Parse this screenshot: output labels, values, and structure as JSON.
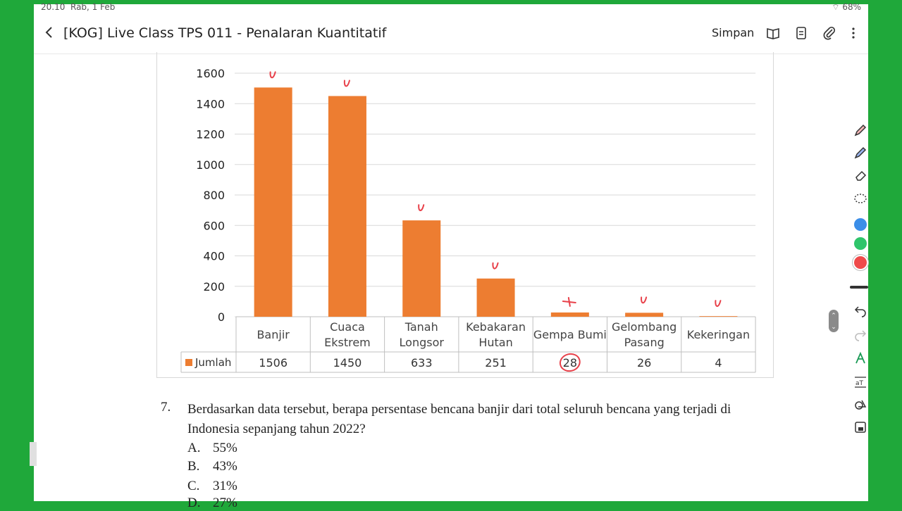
{
  "status": {
    "time": "20.10",
    "date": "Rab, 1 Feb",
    "battery": "68%"
  },
  "appbar": {
    "title": "[KOG] Live Class TPS 011 - Penalaran Kuantitatif",
    "save_label": "Simpan"
  },
  "chart_data": {
    "type": "bar",
    "categories": [
      "Banjir",
      "Cuaca Ekstrem",
      "Tanah Longsor",
      "Kebakaran Hutan",
      "Gempa Bumi",
      "Gelombang Pasang",
      "Kekeringan"
    ],
    "category_lines": [
      [
        "Banjir"
      ],
      [
        "Cuaca",
        "Ekstrem"
      ],
      [
        "Tanah",
        "Longsor"
      ],
      [
        "Kebakaran",
        "Hutan"
      ],
      [
        "Gempa Bumi"
      ],
      [
        "Gelombang",
        "Pasang"
      ],
      [
        "Kekeringan"
      ]
    ],
    "series": [
      {
        "name": "Jumlah",
        "values": [
          1506,
          1450,
          633,
          251,
          28,
          26,
          4
        ],
        "color": "#ed7d31"
      }
    ],
    "table_values": [
      "1506",
      "1450",
      "633",
      "251",
      "28",
      "26",
      "4"
    ],
    "yticks": [
      "0",
      "200",
      "400",
      "600",
      "800",
      "1000",
      "1200",
      "1400",
      "1600"
    ],
    "ylim": [
      0,
      1600
    ],
    "grid": true,
    "legend": "data table"
  },
  "annotation_color": "#e8414a",
  "question": {
    "number": "7.",
    "text": "Berdasarkan data tersebut, berapa persentase bencana banjir dari total seluruh bencana yang terjadi di Indonesia sepanjang tahun 2022?",
    "options": [
      {
        "letter": "A.",
        "value": "55%"
      },
      {
        "letter": "B.",
        "value": "43%"
      },
      {
        "letter": "C.",
        "value": "31%"
      },
      {
        "letter": "D.",
        "value": "27%"
      }
    ]
  },
  "toolbar": {
    "colors": [
      "#3b8ee8",
      "#2ec56a",
      "#ef4a4a"
    ],
    "icons": [
      "pen-icon",
      "highlighter-icon",
      "eraser-icon",
      "lasso-icon",
      "undo-icon",
      "redo-icon",
      "handwriting-icon",
      "text-convert-icon",
      "shapes-icon",
      "lock-icon"
    ]
  }
}
